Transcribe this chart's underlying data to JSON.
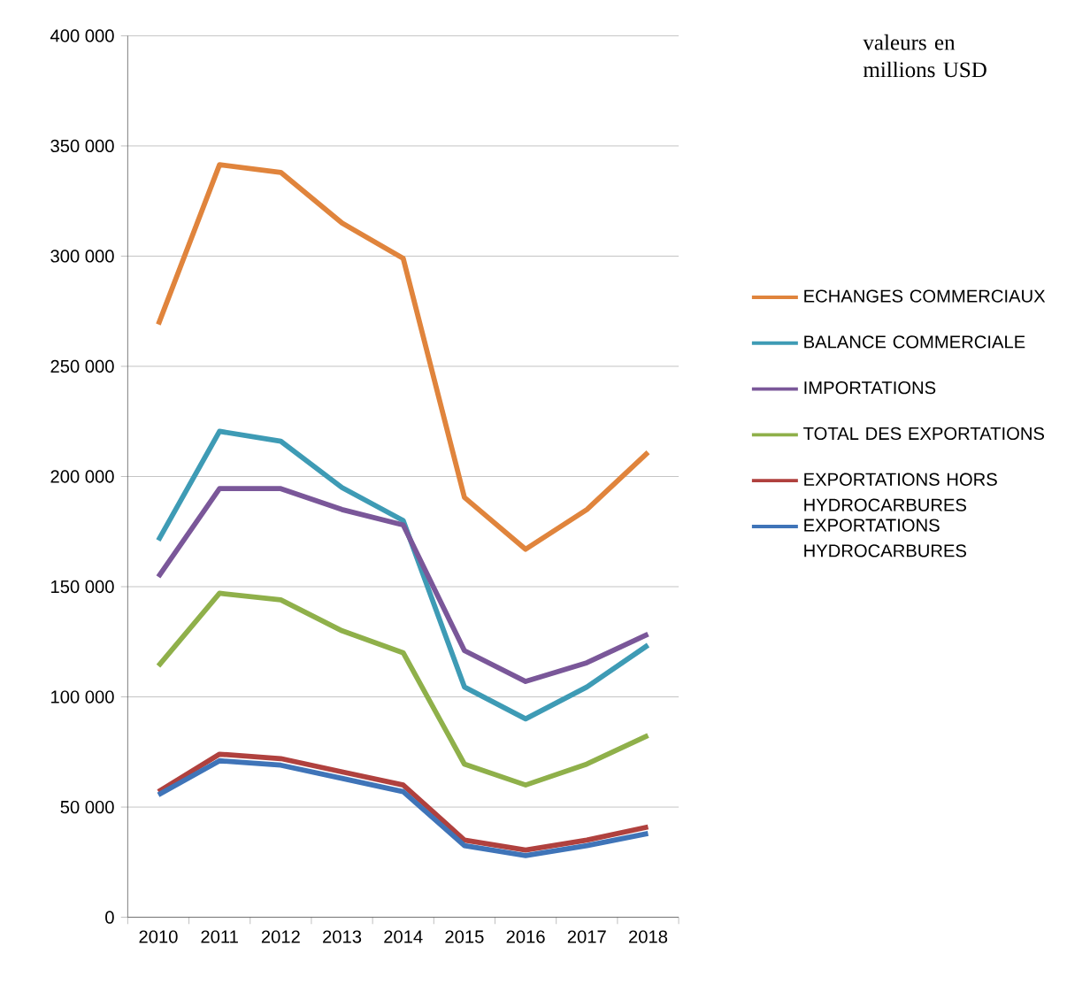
{
  "chart_data": {
    "type": "line",
    "annotations": [
      "valeurs en millions USD"
    ],
    "categories": [
      "2010",
      "2011",
      "2012",
      "2013",
      "2014",
      "2015",
      "2016",
      "2017",
      "2018"
    ],
    "series": [
      {
        "name": "ECHANGES COMMERCIAUX",
        "color": "#e0843c",
        "values": [
          269000,
          341500,
          338000,
          315000,
          299000,
          190500,
          167000,
          185000,
          211000
        ]
      },
      {
        "name": "BALANCE COMMERCIALE",
        "color": "#3e9bb5",
        "values": [
          171000,
          220500,
          216000,
          195000,
          180000,
          104500,
          90000,
          104500,
          123500
        ]
      },
      {
        "name": "IMPORTATIONS",
        "color": "#7a5799",
        "values": [
          154500,
          194500,
          194500,
          185000,
          178000,
          121000,
          107000,
          115500,
          128500
        ]
      },
      {
        "name": "TOTAL DES EXPORTATIONS",
        "color": "#8fb04a",
        "values": [
          114000,
          147000,
          144000,
          130000,
          120000,
          69500,
          60000,
          69500,
          82500
        ]
      },
      {
        "name": "EXPORTATIONS HORS HYDROCARBURES",
        "color": "#b0413e",
        "values": [
          57000,
          74000,
          72000,
          66000,
          60000,
          35000,
          30500,
          35000,
          41000
        ]
      },
      {
        "name": "EXPORTATIONS HYDROCARBURES",
        "color": "#3f74b8",
        "values": [
          55500,
          71000,
          69000,
          63000,
          57000,
          32500,
          28000,
          32500,
          38000
        ]
      }
    ],
    "ylim": [
      0,
      400000
    ],
    "yticks": [
      0,
      {
        "value": 50000,
        "label": "50 000"
      },
      {
        "value": 100000,
        "label": "100 000"
      },
      {
        "value": 150000,
        "label": "150 000"
      },
      {
        "value": 200000,
        "label": "200 000"
      },
      {
        "value": 250000,
        "label": "250 000"
      },
      {
        "value": 300000,
        "label": "300 000"
      },
      {
        "value": 350000,
        "label": "350 000"
      },
      {
        "value": 400000,
        "label": "400 000"
      }
    ],
    "grid": "y",
    "legend": "right",
    "marker": "none",
    "line_style": "solid"
  }
}
